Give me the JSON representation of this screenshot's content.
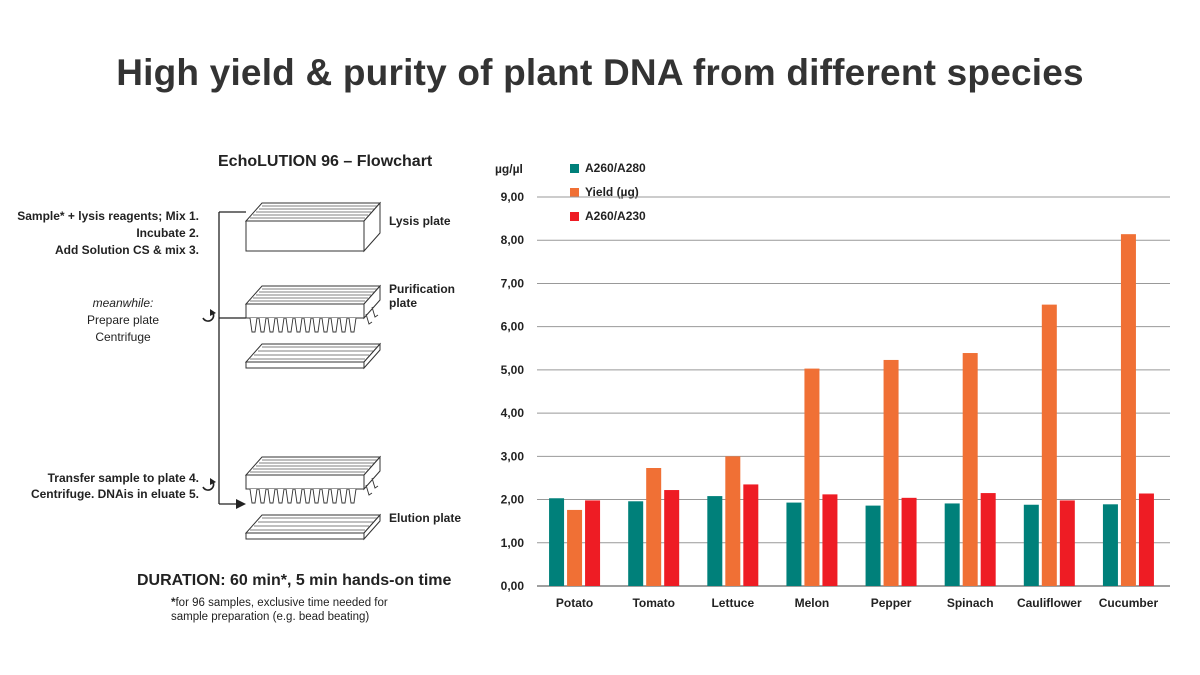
{
  "title": "High yield & purity of plant DNA from different species",
  "flowchart": {
    "title": "EchoLUTION 96 – Flowchart",
    "steps": [
      "Sample* + lysis reagents; Mix  1.",
      "Incubate  2.",
      "Add Solution CS & mix  3."
    ],
    "meanwhile_label": "meanwhile:",
    "meanwhile_items": [
      "Prepare plate",
      "Centrifuge"
    ],
    "transfer_steps": [
      "Transfer sample to plate  4.",
      "Centrifuge. DNAis in eluate  5."
    ],
    "plates": {
      "lysis": "Lysis plate",
      "purification_line1": "Purification",
      "purification_line2": "plate",
      "elution": "Elution plate"
    },
    "duration": "DURATION: 60 min*, 5 min hands-on time",
    "footnote_star": "*",
    "footnote_line1": "for 96 samples, exclusive time needed for",
    "footnote_line2": "sample preparation (e.g. bead beating)"
  },
  "chart_data": {
    "type": "bar",
    "ylabel": "µg/µl",
    "ylim": [
      0,
      9
    ],
    "yticks": [
      "0,00",
      "1,00",
      "2,00",
      "3,00",
      "4,00",
      "5,00",
      "6,00",
      "7,00",
      "8,00",
      "9,00"
    ],
    "grid": true,
    "legend_position": "top-left",
    "categories": [
      "Potato",
      "Tomato",
      "Lettuce",
      "Melon",
      "Pepper",
      "Spinach",
      "Cauliflower",
      "Cucumber"
    ],
    "series": [
      {
        "name": "A260/A280",
        "color": "#00807a",
        "values": [
          2.03,
          1.96,
          2.08,
          1.93,
          1.86,
          1.91,
          1.88,
          1.89
        ]
      },
      {
        "name": "Yield (µg)",
        "color": "#f07035",
        "values": [
          1.76,
          2.73,
          3.0,
          5.03,
          5.23,
          5.39,
          6.51,
          8.14
        ]
      },
      {
        "name": "A260/A230",
        "color": "#ee1c24",
        "values": [
          1.98,
          2.22,
          2.35,
          2.12,
          2.04,
          2.15,
          1.98,
          2.14
        ]
      }
    ]
  }
}
